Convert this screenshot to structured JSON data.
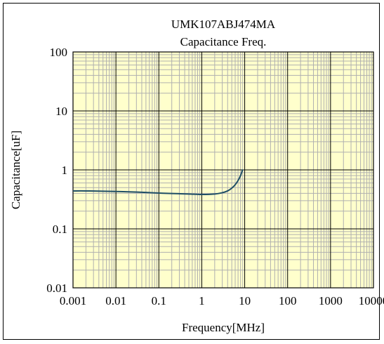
{
  "chart_data": {
    "type": "line",
    "title": "UMK107ABJ474MA",
    "subtitle": "Capacitance Freq.",
    "xlabel": "Frequency[MHz]",
    "ylabel": "Capacitance[uF]",
    "x_scale": "log",
    "y_scale": "log",
    "xlim": [
      0.001,
      10000
    ],
    "ylim": [
      0.01,
      100
    ],
    "x_ticks": [
      "0.001",
      "0.01",
      "0.1",
      "1",
      "10",
      "100",
      "1000",
      "10000"
    ],
    "y_ticks": [
      "100",
      "10",
      "1",
      "0.1",
      "0.01"
    ],
    "grid": true,
    "plot_background": "#ffffcc",
    "grid_color": "#b0b0b0",
    "major_grid_color": "#000000",
    "line_color": "#1f4e66",
    "series": [
      {
        "x": [
          0.001,
          0.002,
          0.005,
          0.01,
          0.02,
          0.05,
          0.1,
          0.2,
          0.5,
          1,
          2,
          3,
          4,
          5,
          6,
          7,
          8,
          9
        ],
        "values": [
          0.44,
          0.44,
          0.435,
          0.43,
          0.425,
          0.415,
          0.405,
          0.398,
          0.39,
          0.383,
          0.39,
          0.41,
          0.44,
          0.49,
          0.56,
          0.66,
          0.8,
          1.02
        ]
      }
    ]
  }
}
